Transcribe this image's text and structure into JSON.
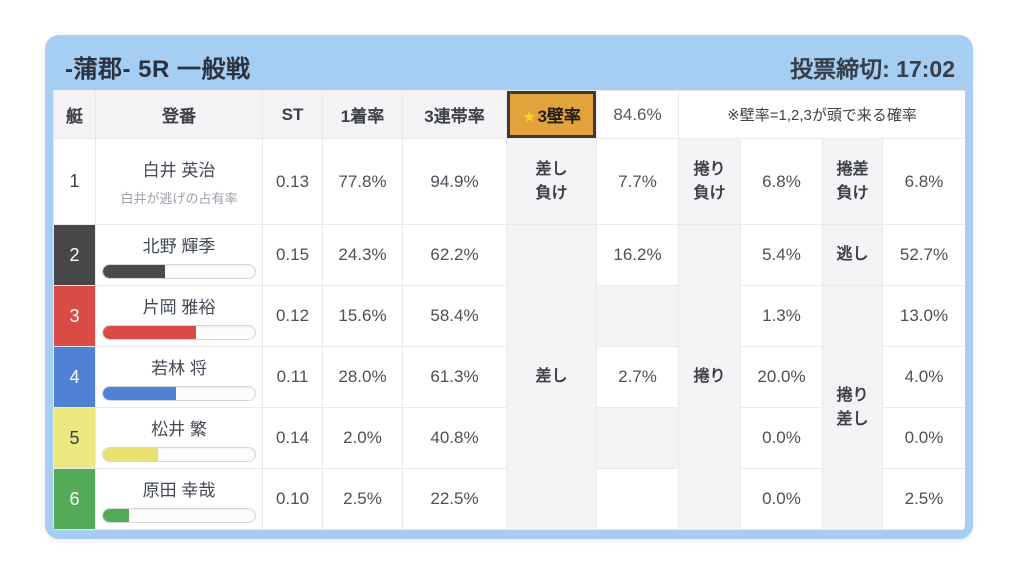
{
  "card": {
    "accent_color": "#a6cdf2",
    "title": "-蒲郡- 5R 一般戦",
    "deadline": "投票締切: 17:02"
  },
  "table": {
    "headers": {
      "boat": "艇",
      "racer": "登番",
      "st": "ST",
      "first_rate": "1着率",
      "top3_rate": "3連帯率",
      "note": "※壁率=1,2,3が頭で来る確率"
    },
    "wall_cell": {
      "star": "★",
      "label": "3壁率",
      "value": "84.6%",
      "bg": "#e2a23c",
      "star_color": "#f6d52e"
    },
    "merged": {
      "sashi": "差し",
      "makuri": "捲り",
      "makuri_sashi": "捲り\n差し"
    },
    "rows": [
      {
        "boat": "1",
        "boat_bg": "#ffffff",
        "boat_fg": "#3b3f47",
        "name": "白井 英治",
        "caption": "白井が逃げの占有率",
        "st": "0.13",
        "first": "77.8%",
        "top3": "94.9%",
        "l1": "差し\n負け",
        "v1": "7.7%",
        "l2": "捲り\n負け",
        "v2": "6.8%",
        "l3": "捲差\n負け",
        "v3": "6.8%"
      },
      {
        "boat": "2",
        "boat_bg": "#474747",
        "boat_fg": "#ffffff",
        "name": "北野 輝季",
        "bar_pct": 41,
        "bar_color": "#4a4a4a",
        "st": "0.15",
        "first": "24.3%",
        "top3": "62.2%",
        "v1": "16.2%",
        "v2": "5.4%",
        "l3": "逃し",
        "v3": "52.7%"
      },
      {
        "boat": "3",
        "boat_bg": "#da4b45",
        "boat_fg": "#ffffff",
        "name": "片岡 雅裕",
        "bar_pct": 61,
        "bar_color": "#da4b45",
        "st": "0.12",
        "first": "15.6%",
        "top3": "58.4%",
        "v1": "",
        "v2": "1.3%",
        "v3": "13.0%"
      },
      {
        "boat": "4",
        "boat_bg": "#4f81d4",
        "boat_fg": "#ffffff",
        "name": "若林 将",
        "bar_pct": 48,
        "bar_color": "#4f81d4",
        "st": "0.11",
        "first": "28.0%",
        "top3": "61.3%",
        "v1": "2.7%",
        "v2": "20.0%",
        "v3": "4.0%"
      },
      {
        "boat": "5",
        "boat_bg": "#ece77e",
        "boat_fg": "#3b3f47",
        "name": "松井 繁",
        "bar_pct": 36,
        "bar_color": "#e7e172",
        "st": "0.14",
        "first": "2.0%",
        "top3": "40.8%",
        "v1": "",
        "v2": "0.0%",
        "v3": "0.0%"
      },
      {
        "boat": "6",
        "boat_bg": "#53ab57",
        "boat_fg": "#ffffff",
        "name": "原田 幸哉",
        "bar_pct": 17,
        "bar_color": "#53ab57",
        "st": "0.10",
        "first": "2.5%",
        "top3": "22.5%",
        "v1": "",
        "v2": "0.0%",
        "v3": "2.5%"
      }
    ]
  }
}
